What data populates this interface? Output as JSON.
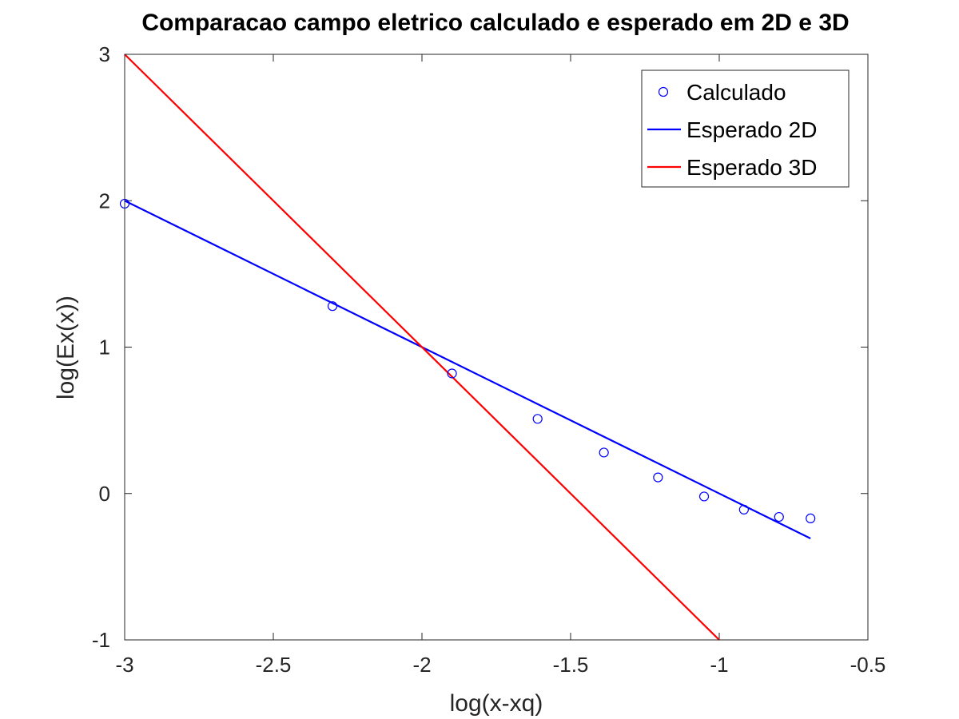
{
  "chart_data": {
    "type": "line",
    "title": "Comparacao campo eletrico calculado e esperado em 2D e 3D",
    "xlabel": "log(x-xq)",
    "ylabel": "log(Ex(x))",
    "xlim": [
      -3,
      -0.5
    ],
    "ylim": [
      -1,
      3
    ],
    "xticks": [
      -3,
      -2.5,
      -2,
      -1.5,
      -1,
      -0.5
    ],
    "xtick_labels": [
      "-3",
      "-2.5",
      "-2",
      "-1.5",
      "-1",
      "-0.5"
    ],
    "yticks": [
      -1,
      0,
      1,
      2,
      3
    ],
    "ytick_labels": [
      "-1",
      "0",
      "1",
      "2",
      "3"
    ],
    "grid": false,
    "legend_position": "top-right",
    "series": [
      {
        "name": "Calculado",
        "kind": "scatter",
        "marker": "circle",
        "color": "#0000ff",
        "x": [
          -3.0,
          -2.301,
          -1.899,
          -1.611,
          -1.388,
          -1.206,
          -1.051,
          -0.917,
          -0.799,
          -0.693
        ],
        "y": [
          1.98,
          1.28,
          0.82,
          0.51,
          0.28,
          0.11,
          -0.02,
          -0.11,
          -0.16,
          -0.17
        ]
      },
      {
        "name": "Esperado 2D",
        "kind": "line",
        "color": "#0000ff",
        "x": [
          -3.0,
          -0.693
        ],
        "y": [
          2.0,
          -0.307
        ]
      },
      {
        "name": "Esperado 3D",
        "kind": "line",
        "color": "#ff0000",
        "x": [
          -3.0,
          -1.0
        ],
        "y": [
          3.0,
          -1.0
        ]
      }
    ]
  }
}
